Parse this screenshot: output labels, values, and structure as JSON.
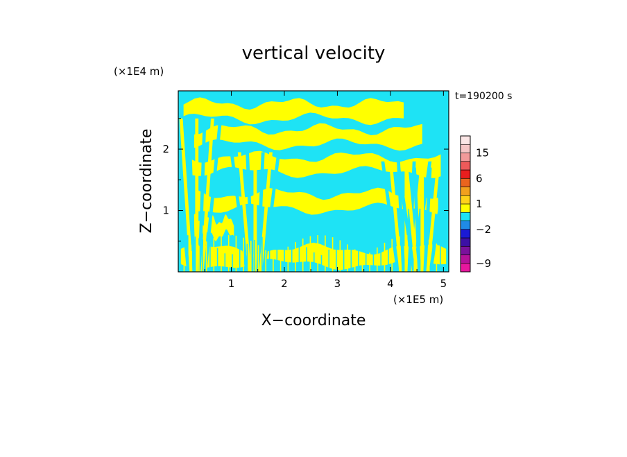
{
  "chart_data": {
    "type": "heatmap",
    "title": "vertical velocity",
    "time_label": "t=190200 s",
    "xlabel": "X−coordinate",
    "ylabel": "Z−coordinate",
    "x_unit": "(×1E5 m)",
    "y_unit": "(×1E4 m)",
    "xlim": [
      0,
      5.1
    ],
    "ylim": [
      0,
      2.95
    ],
    "xticks": [
      {
        "value": 1,
        "label": "1"
      },
      {
        "value": 2,
        "label": "2"
      },
      {
        "value": 3,
        "label": "3"
      },
      {
        "value": 4,
        "label": "4"
      },
      {
        "value": 5,
        "label": "5"
      }
    ],
    "yticks": [
      {
        "value": 1,
        "label": "1"
      },
      {
        "value": 2,
        "label": "2"
      }
    ],
    "colorbar": {
      "levels": [
        -12,
        -9,
        -6,
        -4,
        -3,
        -2,
        -1,
        0,
        1,
        2,
        3,
        6,
        9,
        12,
        15,
        18,
        24
      ],
      "colors": [
        "#e8179e",
        "#b5129a",
        "#7a119c",
        "#3c10a6",
        "#1a1ad6",
        "#1f8be6",
        "#1ee3f5",
        "#ffff00",
        "#ffd21a",
        "#f2a01e",
        "#ea641e",
        "#e81e1e",
        "#ee5a5a",
        "#f29a9a",
        "#f6c6c6",
        "#fbe6e6"
      ],
      "tick_labels": [
        {
          "value": 15,
          "label": "15"
        },
        {
          "value": 6,
          "label": "6"
        },
        {
          "value": 1,
          "label": "1"
        },
        {
          "value": -2,
          "label": "−2"
        },
        {
          "value": -9,
          "label": "−9"
        }
      ]
    },
    "field": {
      "dominant_levels": [
        -1,
        0
      ],
      "positive_color": "#ffff00",
      "negative_color": "#1ee3f5",
      "min_color": "#3c10a6",
      "bands": [
        {
          "z": 0.25,
          "x0": 0.05,
          "x1": 5.05
        },
        {
          "z": 0.72,
          "x0": 0.3,
          "x1": 1.05
        },
        {
          "z": 1.15,
          "x0": 0.35,
          "x1": 4.9
        },
        {
          "z": 1.75,
          "x0": 0.25,
          "x1": 4.95
        },
        {
          "z": 2.2,
          "x0": 0.3,
          "x1": 4.6
        },
        {
          "z": 2.62,
          "x0": 0.1,
          "x1": 4.25
        }
      ],
      "plumes": [
        {
          "x": 0.35,
          "z_top": 2.5
        },
        {
          "x": 1.45,
          "z_top": 1.95
        },
        {
          "x": 4.3,
          "z_top": 1.8
        },
        {
          "x": 4.6,
          "z_top": 1.7
        }
      ]
    }
  }
}
